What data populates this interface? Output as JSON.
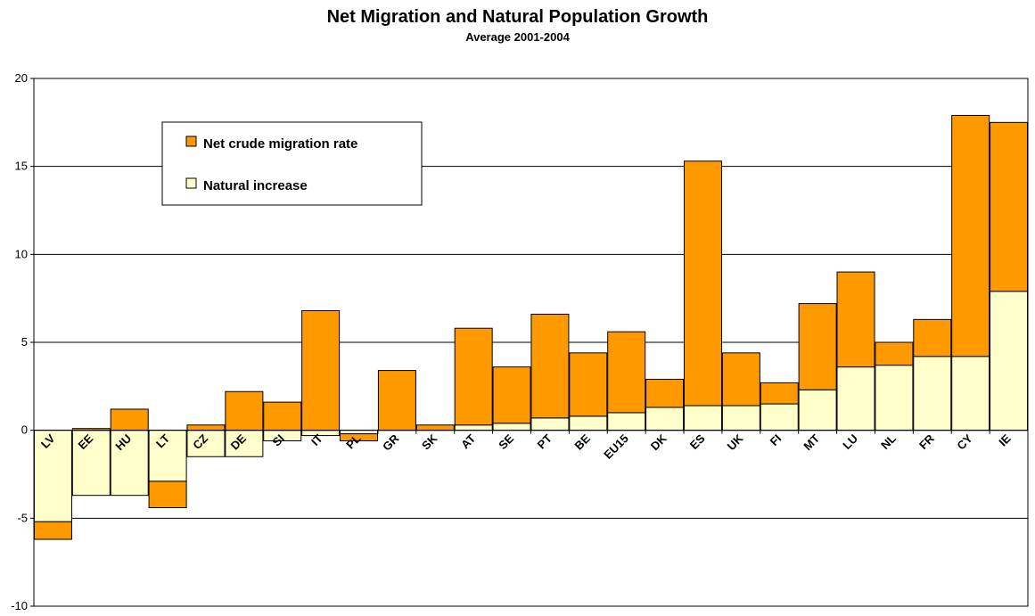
{
  "chart_data": {
    "type": "bar",
    "stacked": true,
    "title": "Net Migration and Natural Population Growth",
    "subtitle": "Average 2001-2004",
    "xlabel": "",
    "ylabel": "",
    "ylim": [
      -10,
      20
    ],
    "yticks": [
      -10,
      -5,
      0,
      5,
      10,
      15,
      20
    ],
    "grid": true,
    "legend_position": "top-left",
    "categories": [
      "LV",
      "EE",
      "HU",
      "LT",
      "CZ",
      "DE",
      "SI",
      "IT",
      "PL",
      "GR",
      "SK",
      "AT",
      "SE",
      "PT",
      "BE",
      "EU15",
      "DK",
      "ES",
      "UK",
      "FI",
      "MT",
      "LU",
      "NL",
      "FR",
      "CY",
      "IE"
    ],
    "series": [
      {
        "name": "Net crude migration rate",
        "color": "#FF9900",
        "values": [
          -1.0,
          0.1,
          1.2,
          -1.5,
          0.3,
          2.2,
          1.6,
          6.8,
          -0.4,
          3.4,
          0.3,
          5.5,
          3.2,
          5.9,
          3.6,
          4.6,
          1.6,
          13.9,
          3.0,
          1.2,
          4.9,
          5.4,
          1.3,
          2.1,
          13.7,
          9.6
        ]
      },
      {
        "name": "Natural increase",
        "color": "#FFFFCC",
        "values": [
          -5.2,
          -3.7,
          -3.7,
          -2.9,
          -1.5,
          -1.5,
          -0.6,
          -0.3,
          -0.2,
          0.0,
          0.0,
          0.3,
          0.4,
          0.7,
          0.8,
          1.0,
          1.3,
          1.4,
          1.4,
          1.5,
          2.3,
          3.6,
          3.7,
          4.2,
          4.2,
          7.9
        ]
      }
    ]
  }
}
